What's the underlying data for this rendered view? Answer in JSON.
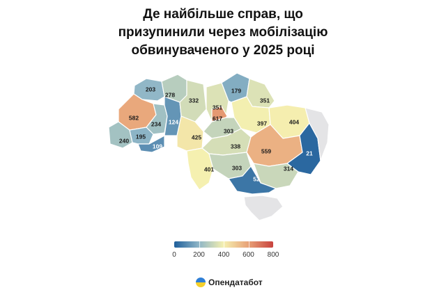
{
  "title": {
    "line1": "Де найбільше справ, що",
    "line2": "призупинили через мобілізацію",
    "line3": "обвинуваченого у 2025 році"
  },
  "colors": {
    "scale": [
      "#1f5f9b",
      "#8fb6c7",
      "#f5f0b0",
      "#e8a177",
      "#c8423e"
    ],
    "no_data": "#e4e4e6",
    "border": "#ffffff"
  },
  "chart_data": {
    "type": "choropleth",
    "scale_min": 0,
    "scale_max": 800,
    "regions": [
      {
        "id": "volyn",
        "value": 203
      },
      {
        "id": "rivne",
        "value": 278
      },
      {
        "id": "lviv",
        "value": 582
      },
      {
        "id": "ternopil",
        "value": 234
      },
      {
        "id": "khmelnytskyi",
        "value": 124
      },
      {
        "id": "zakarpattia",
        "value": 240
      },
      {
        "id": "ivano-frankivsk",
        "value": 195
      },
      {
        "id": "chernivtsi",
        "value": 109
      },
      {
        "id": "zhytomyr",
        "value": 332
      },
      {
        "id": "kyiv-oblast",
        "value": 351
      },
      {
        "id": "kyiv-city",
        "value": 617
      },
      {
        "id": "chernihiv",
        "value": 179
      },
      {
        "id": "sumy",
        "value": 351
      },
      {
        "id": "poltava",
        "value": 397
      },
      {
        "id": "kharkiv",
        "value": 404
      },
      {
        "id": "vinnytsia",
        "value": 425
      },
      {
        "id": "cherkasy",
        "value": 303
      },
      {
        "id": "kirovohrad",
        "value": 338
      },
      {
        "id": "dnipropetrovsk",
        "value": 559
      },
      {
        "id": "donetsk",
        "value": 21
      },
      {
        "id": "odesa",
        "value": 401
      },
      {
        "id": "mykolaiv",
        "value": 303
      },
      {
        "id": "zaporizhzhia",
        "value": 314
      },
      {
        "id": "kherson",
        "value": 52
      },
      {
        "id": "luhansk",
        "value": null
      },
      {
        "id": "crimea",
        "value": null
      }
    ]
  },
  "legend": {
    "ticks": [
      "0",
      "200",
      "400",
      "600",
      "800"
    ]
  },
  "brand": {
    "name": "Опендатабот"
  }
}
